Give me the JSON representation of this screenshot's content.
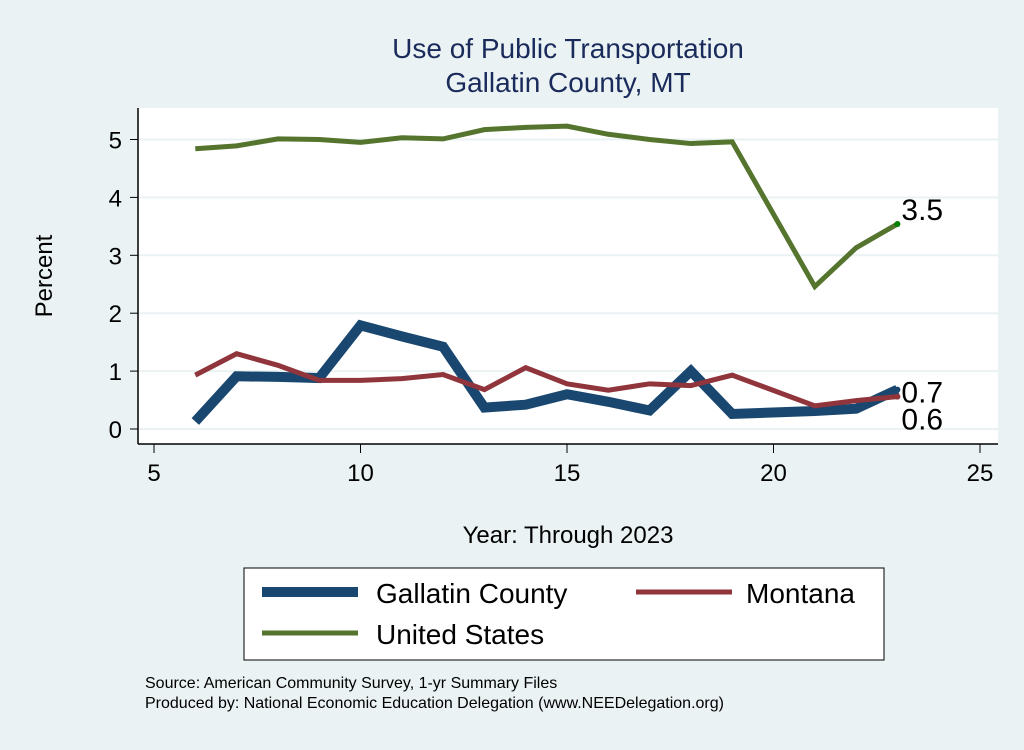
{
  "chart_data": {
    "type": "line",
    "title": "Use of Public Transportation",
    "subtitle": "Gallatin County, MT",
    "xlabel": "Year: Through 2023",
    "ylabel": "Percent",
    "xlim": [
      5,
      25
    ],
    "ylim": [
      -0.2,
      5.5
    ],
    "xticks": [
      5,
      10,
      15,
      20,
      25
    ],
    "yticks": [
      0,
      1,
      2,
      3,
      4,
      5
    ],
    "grid": true,
    "legend_position": "bottom",
    "series": [
      {
        "name": "Gallatin County",
        "color": "#1a476f",
        "x": [
          6,
          7,
          8,
          9,
          10,
          11,
          12,
          13,
          14,
          15,
          16,
          17,
          18,
          19,
          21,
          22,
          23
        ],
        "y": [
          0.13,
          0.91,
          0.9,
          0.88,
          1.79,
          1.6,
          1.42,
          0.37,
          0.42,
          0.6,
          0.47,
          0.32,
          1.0,
          0.26,
          0.31,
          0.35,
          0.68
        ],
        "end_label": "0.7"
      },
      {
        "name": "Montana",
        "color": "#90353b",
        "x": [
          6,
          7,
          8,
          9,
          10,
          11,
          12,
          13,
          14,
          15,
          16,
          17,
          18,
          19,
          21,
          22,
          23
        ],
        "y": [
          0.93,
          1.3,
          1.1,
          0.84,
          0.84,
          0.87,
          0.94,
          0.68,
          1.06,
          0.78,
          0.67,
          0.78,
          0.75,
          0.93,
          0.4,
          0.49,
          0.56
        ],
        "end_label": "0.6"
      },
      {
        "name": "United States",
        "color": "#55752f",
        "x": [
          6,
          7,
          8,
          9,
          10,
          11,
          12,
          13,
          14,
          15,
          16,
          17,
          18,
          19,
          21,
          22,
          23
        ],
        "y": [
          4.84,
          4.89,
          5.01,
          5.0,
          4.95,
          5.03,
          5.01,
          5.17,
          5.21,
          5.23,
          5.09,
          5.0,
          4.93,
          4.96,
          2.46,
          3.13,
          3.54
        ],
        "end_label": "3.5"
      }
    ],
    "notes": [
      "Source: American Community Survey, 1-yr Summary Files",
      "Produced by: National Economic Education Delegation (www.NEEDelegation.org)"
    ]
  }
}
